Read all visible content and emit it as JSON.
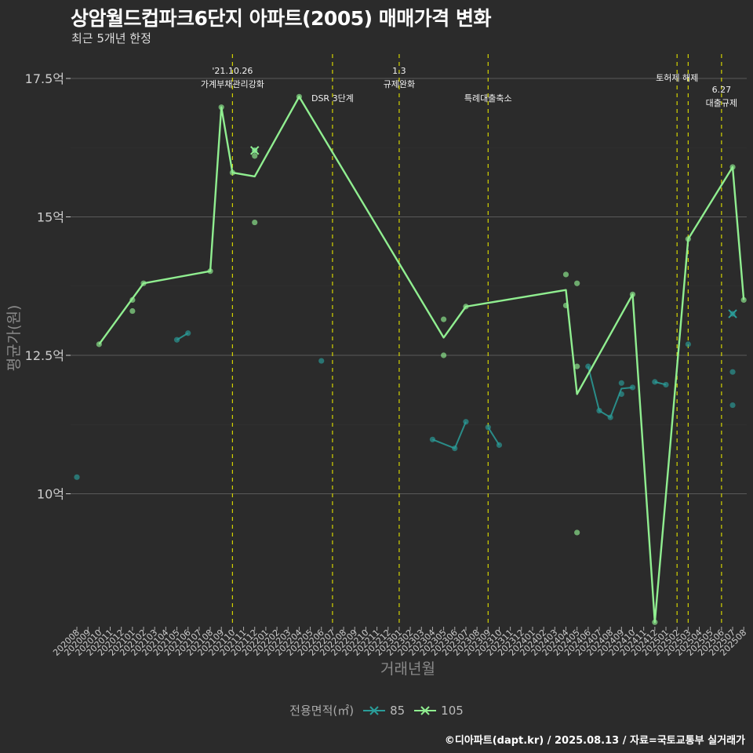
{
  "chart_data": {
    "type": "line",
    "title": "상암월드컵파크6단지 아파트(2005) 매매가격 변화",
    "subtitle": "최근 5개년 한정",
    "xlabel": "거래년월",
    "ylabel": "평균가(원)",
    "caption": "©디아파트(dapt.kr) / 2025.08.13 / 자료=국토교통부 실거래가",
    "legend_title": "전용면적(㎡)",
    "legend_position": "bottom",
    "grid": true,
    "x_categories": [
      "202008",
      "202009",
      "202010",
      "202011",
      "202012",
      "202101",
      "202102",
      "202103",
      "202104",
      "202105",
      "202106",
      "202107",
      "202108",
      "202109",
      "202110",
      "202111",
      "202112",
      "202201",
      "202202",
      "202203",
      "202204",
      "202205",
      "202206",
      "202207",
      "202208",
      "202209",
      "202210",
      "202211",
      "202212",
      "202301",
      "202302",
      "202303",
      "202304",
      "202305",
      "202306",
      "202307",
      "202308",
      "202309",
      "202310",
      "202311",
      "202312",
      "202401",
      "202402",
      "202403",
      "202404",
      "202405",
      "202406",
      "202407",
      "202408",
      "202409",
      "202410",
      "202411",
      "202412",
      "202501",
      "202502",
      "202503",
      "202504",
      "202505",
      "202506",
      "202507",
      "202508"
    ],
    "y_ticks": [
      {
        "value": 10,
        "label": "10억"
      },
      {
        "value": 12.5,
        "label": "12.5억"
      },
      {
        "value": 15,
        "label": "15억"
      },
      {
        "value": 17.5,
        "label": "17.5억"
      }
    ],
    "ylim": [
      7.5,
      18.3
    ],
    "y_unit": "억",
    "series": [
      {
        "name": "85",
        "color": "#2a9d99",
        "line": [
          [
            "202105",
            12.78
          ],
          [
            "202106",
            12.9
          ],
          null,
          [
            "202304",
            10.98
          ],
          [
            "202306",
            10.82
          ],
          [
            "202307",
            11.3
          ],
          null,
          [
            "202309",
            11.2
          ],
          [
            "202310",
            10.88
          ],
          null,
          [
            "202406",
            12.3
          ],
          [
            "202407",
            11.5
          ],
          [
            "202408",
            11.38
          ],
          [
            "202409",
            11.9
          ],
          [
            "202410",
            11.92
          ],
          null,
          [
            "202412",
            12.02
          ],
          [
            "202501",
            11.97
          ]
        ],
        "points": [
          [
            "202008",
            10.3
          ],
          [
            "202105",
            12.78
          ],
          [
            "202106",
            12.9
          ],
          [
            "202112",
            16.2
          ],
          [
            "202206",
            12.4
          ],
          [
            "202304",
            10.98
          ],
          [
            "202306",
            10.82
          ],
          [
            "202307",
            11.3
          ],
          [
            "202309",
            11.2
          ],
          [
            "202310",
            10.88
          ],
          [
            "202406",
            12.3
          ],
          [
            "202407",
            11.5
          ],
          [
            "202408",
            11.38
          ],
          [
            "202409",
            12.0
          ],
          [
            "202409",
            11.8
          ],
          [
            "202410",
            11.92
          ],
          [
            "202412",
            12.02
          ],
          [
            "202501",
            11.97
          ],
          [
            "202503",
            12.7
          ],
          [
            "202507",
            12.2
          ],
          [
            "202507",
            11.6
          ],
          [
            "202507",
            13.25
          ]
        ],
        "latest": [
          "202507",
          13.25
        ]
      },
      {
        "name": "105",
        "color": "#90ee90",
        "line": [
          [
            "202010",
            12.7
          ],
          [
            "202102",
            13.8
          ],
          [
            "202108",
            14.02
          ],
          [
            "202109",
            16.98
          ],
          [
            "202110",
            15.8
          ],
          [
            "202112",
            15.73
          ],
          [
            "202204",
            17.17
          ],
          [
            "202305",
            12.82
          ],
          [
            "202307",
            13.38
          ],
          [
            "202404",
            13.68
          ],
          [
            "202405",
            11.8
          ],
          [
            "202410",
            13.6
          ],
          [
            "202412",
            7.68
          ],
          [
            "202503",
            14.6
          ],
          [
            "202507",
            15.9
          ],
          [
            "202508",
            13.5
          ]
        ],
        "points": [
          [
            "202010",
            12.7
          ],
          [
            "202101",
            13.5
          ],
          [
            "202101",
            13.3
          ],
          [
            "202102",
            13.8
          ],
          [
            "202108",
            14.02
          ],
          [
            "202109",
            16.98
          ],
          [
            "202110",
            15.8
          ],
          [
            "202112",
            16.2
          ],
          [
            "202112",
            16.1
          ],
          [
            "202112",
            14.9
          ],
          [
            "202204",
            17.17
          ],
          [
            "202305",
            13.15
          ],
          [
            "202305",
            12.5
          ],
          [
            "202307",
            13.38
          ],
          [
            "202404",
            13.96
          ],
          [
            "202404",
            13.4
          ],
          [
            "202405",
            13.8
          ],
          [
            "202405",
            12.3
          ],
          [
            "202405",
            9.3
          ],
          [
            "202410",
            13.6
          ],
          [
            "202412",
            7.68
          ],
          [
            "202503",
            14.6
          ],
          [
            "202507",
            15.9
          ],
          [
            "202508",
            13.5
          ]
        ],
        "latest": [
          "202112",
          16.2
        ]
      }
    ],
    "events": [
      {
        "date": "202110",
        "lines": [
          "'21.10.26",
          "가계부채관리강화"
        ]
      },
      {
        "date": "202207",
        "lines": [
          "DSR 3단계"
        ]
      },
      {
        "date": "202301",
        "lines": [
          "1.3",
          "규제완화"
        ]
      },
      {
        "date": "202309",
        "lines": [
          "특례대출축소"
        ]
      },
      {
        "date": "202502",
        "lines": [
          "토허제 해제"
        ]
      },
      {
        "date": "202503",
        "lines": []
      },
      {
        "date": "202506",
        "lines": [
          "6.27",
          "대출규제"
        ]
      }
    ],
    "event_line_color": "#d4d400"
  }
}
